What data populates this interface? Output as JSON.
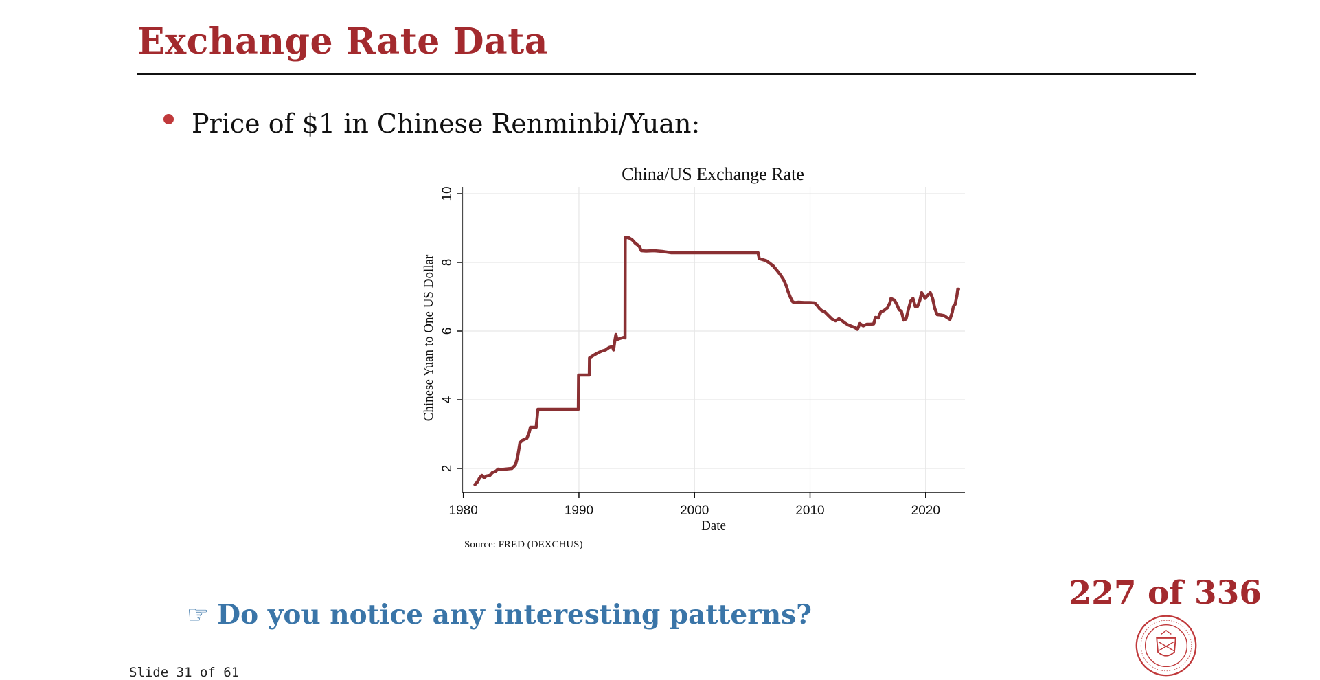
{
  "slide": {
    "title": "Exchange Rate Data",
    "bullet": "Price of $1 in Chinese Renminbi/Yuan:",
    "question_icon": "pointing-hand-icon",
    "question_glyph": "☞",
    "question": "Do you notice any interesting patterns?",
    "slide_counter": "Slide 31 of 61",
    "page_counter": "227 of 336",
    "seal_text": "CARNEGIE MELLON UNIVERSITY · PITTSBURGH PENNSYLVANIA 1900"
  },
  "colors": {
    "title": "#a32a2e",
    "bullet": "#c0393b",
    "question": "#3a75a8",
    "series": "#8a3033",
    "grid": "#e6e6e6"
  },
  "chart_data": {
    "type": "line",
    "title": "China/US Exchange Rate",
    "xlabel": "Date",
    "ylabel": "Chinese Yuan to One US Dollar",
    "source": "Source: FRED (DEXCHUS)",
    "xlim": [
      1979.9,
      2023.4
    ],
    "ylim": [
      1.3,
      10.2
    ],
    "x_ticks": [
      1980,
      1990,
      2000,
      2010,
      2020
    ],
    "y_ticks": [
      2,
      4,
      6,
      8,
      10
    ],
    "grid": true,
    "legend": "none",
    "series": [
      {
        "points": [
          [
            1981.0,
            1.53
          ],
          [
            1981.2,
            1.6
          ],
          [
            1981.4,
            1.72
          ],
          [
            1981.6,
            1.8
          ],
          [
            1981.8,
            1.73
          ],
          [
            1982.0,
            1.78
          ],
          [
            1982.3,
            1.8
          ],
          [
            1982.5,
            1.88
          ],
          [
            1982.8,
            1.92
          ],
          [
            1983.0,
            1.98
          ],
          [
            1983.3,
            1.97
          ],
          [
            1983.6,
            1.98
          ],
          [
            1983.9,
            1.99
          ],
          [
            1984.2,
            2.0
          ],
          [
            1984.5,
            2.1
          ],
          [
            1984.7,
            2.35
          ],
          [
            1984.9,
            2.75
          ],
          [
            1985.1,
            2.82
          ],
          [
            1985.3,
            2.85
          ],
          [
            1985.5,
            2.88
          ],
          [
            1985.7,
            3.05
          ],
          [
            1985.8,
            3.2
          ],
          [
            1986.3,
            3.2
          ],
          [
            1986.45,
            3.72
          ],
          [
            1989.95,
            3.72
          ],
          [
            1989.97,
            4.72
          ],
          [
            1990.9,
            4.72
          ],
          [
            1990.92,
            5.22
          ],
          [
            1991.3,
            5.3
          ],
          [
            1991.6,
            5.36
          ],
          [
            1992.0,
            5.42
          ],
          [
            1992.3,
            5.45
          ],
          [
            1992.6,
            5.52
          ],
          [
            1992.9,
            5.55
          ],
          [
            1993.0,
            5.45
          ],
          [
            1993.1,
            5.7
          ],
          [
            1993.2,
            5.9
          ],
          [
            1993.3,
            5.75
          ],
          [
            1993.5,
            5.78
          ],
          [
            1993.9,
            5.82
          ],
          [
            1993.99,
            5.8
          ],
          [
            1994.0,
            8.72
          ],
          [
            1994.3,
            8.72
          ],
          [
            1994.6,
            8.66
          ],
          [
            1994.9,
            8.55
          ],
          [
            1995.2,
            8.48
          ],
          [
            1995.4,
            8.34
          ],
          [
            1995.8,
            8.33
          ],
          [
            1996.5,
            8.34
          ],
          [
            1997.2,
            8.32
          ],
          [
            1998.0,
            8.28
          ],
          [
            2005.5,
            8.28
          ],
          [
            2005.6,
            8.11
          ],
          [
            2005.9,
            8.08
          ],
          [
            2006.2,
            8.05
          ],
          [
            2006.5,
            7.98
          ],
          [
            2006.8,
            7.9
          ],
          [
            2007.1,
            7.78
          ],
          [
            2007.4,
            7.65
          ],
          [
            2007.7,
            7.5
          ],
          [
            2007.9,
            7.35
          ],
          [
            2008.1,
            7.15
          ],
          [
            2008.3,
            6.98
          ],
          [
            2008.5,
            6.85
          ],
          [
            2008.7,
            6.83
          ],
          [
            2009.0,
            6.84
          ],
          [
            2009.5,
            6.83
          ],
          [
            2010.0,
            6.83
          ],
          [
            2010.4,
            6.82
          ],
          [
            2010.6,
            6.75
          ],
          [
            2010.8,
            6.66
          ],
          [
            2011.0,
            6.6
          ],
          [
            2011.3,
            6.55
          ],
          [
            2011.6,
            6.45
          ],
          [
            2011.9,
            6.35
          ],
          [
            2012.2,
            6.3
          ],
          [
            2012.5,
            6.36
          ],
          [
            2012.7,
            6.32
          ],
          [
            2013.0,
            6.24
          ],
          [
            2013.3,
            6.18
          ],
          [
            2013.6,
            6.14
          ],
          [
            2013.9,
            6.1
          ],
          [
            2014.1,
            6.05
          ],
          [
            2014.3,
            6.22
          ],
          [
            2014.6,
            6.15
          ],
          [
            2014.9,
            6.2
          ],
          [
            2015.2,
            6.2
          ],
          [
            2015.5,
            6.21
          ],
          [
            2015.65,
            6.4
          ],
          [
            2015.9,
            6.38
          ],
          [
            2016.1,
            6.55
          ],
          [
            2016.4,
            6.6
          ],
          [
            2016.7,
            6.68
          ],
          [
            2016.9,
            6.82
          ],
          [
            2017.0,
            6.95
          ],
          [
            2017.3,
            6.9
          ],
          [
            2017.5,
            6.78
          ],
          [
            2017.7,
            6.62
          ],
          [
            2017.9,
            6.58
          ],
          [
            2018.1,
            6.32
          ],
          [
            2018.3,
            6.35
          ],
          [
            2018.5,
            6.62
          ],
          [
            2018.7,
            6.87
          ],
          [
            2018.9,
            6.95
          ],
          [
            2019.1,
            6.72
          ],
          [
            2019.3,
            6.72
          ],
          [
            2019.5,
            6.9
          ],
          [
            2019.65,
            7.12
          ],
          [
            2019.8,
            7.05
          ],
          [
            2019.95,
            6.95
          ],
          [
            2020.2,
            7.05
          ],
          [
            2020.4,
            7.12
          ],
          [
            2020.6,
            6.95
          ],
          [
            2020.8,
            6.65
          ],
          [
            2021.0,
            6.48
          ],
          [
            2021.3,
            6.47
          ],
          [
            2021.6,
            6.45
          ],
          [
            2021.9,
            6.38
          ],
          [
            2022.1,
            6.34
          ],
          [
            2022.3,
            6.55
          ],
          [
            2022.4,
            6.72
          ],
          [
            2022.55,
            6.78
          ],
          [
            2022.7,
            7.02
          ],
          [
            2022.78,
            7.22
          ],
          [
            2022.85,
            7.22
          ]
        ]
      }
    ]
  }
}
